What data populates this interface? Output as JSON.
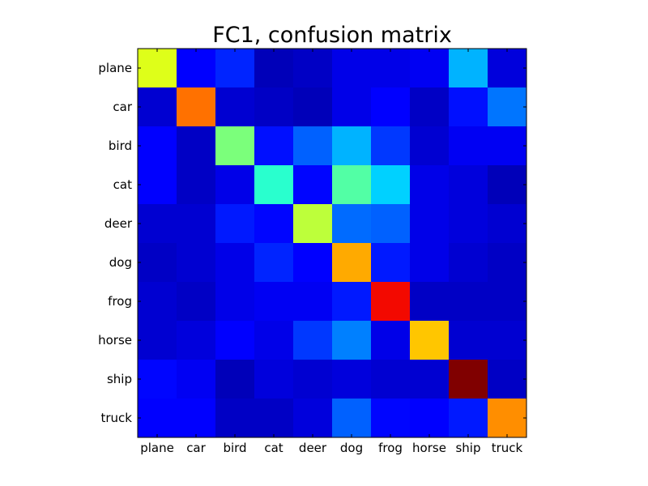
{
  "chart_data": {
    "type": "heatmap",
    "title": "FC1, confusion matrix",
    "xlabel": "",
    "ylabel": "",
    "x_categories": [
      "plane",
      "car",
      "bird",
      "cat",
      "deer",
      "dog",
      "frog",
      "horse",
      "ship",
      "truck"
    ],
    "y_categories": [
      "plane",
      "car",
      "bird",
      "cat",
      "deer",
      "dog",
      "frog",
      "horse",
      "ship",
      "truck"
    ],
    "colormap": "jet",
    "value_range": [
      0,
      1
    ],
    "grid": false,
    "legend": "none",
    "values": [
      [
        0.62,
        0.11,
        0.16,
        0.05,
        0.06,
        0.09,
        0.09,
        0.1,
        0.3,
        0.08
      ],
      [
        0.07,
        0.79,
        0.07,
        0.06,
        0.05,
        0.09,
        0.12,
        0.06,
        0.14,
        0.24
      ],
      [
        0.11,
        0.06,
        0.5,
        0.14,
        0.22,
        0.3,
        0.18,
        0.07,
        0.1,
        0.1
      ],
      [
        0.11,
        0.06,
        0.09,
        0.4,
        0.13,
        0.45,
        0.33,
        0.09,
        0.08,
        0.05
      ],
      [
        0.07,
        0.07,
        0.15,
        0.13,
        0.58,
        0.23,
        0.22,
        0.09,
        0.08,
        0.07
      ],
      [
        0.06,
        0.07,
        0.09,
        0.16,
        0.12,
        0.73,
        0.15,
        0.09,
        0.07,
        0.06
      ],
      [
        0.07,
        0.06,
        0.09,
        0.1,
        0.1,
        0.15,
        0.9,
        0.06,
        0.06,
        0.06
      ],
      [
        0.07,
        0.08,
        0.11,
        0.09,
        0.18,
        0.25,
        0.09,
        0.7,
        0.07,
        0.07
      ],
      [
        0.13,
        0.1,
        0.05,
        0.08,
        0.07,
        0.08,
        0.07,
        0.07,
        1.0,
        0.06
      ],
      [
        0.12,
        0.11,
        0.06,
        0.06,
        0.08,
        0.22,
        0.13,
        0.11,
        0.15,
        0.76
      ]
    ]
  }
}
